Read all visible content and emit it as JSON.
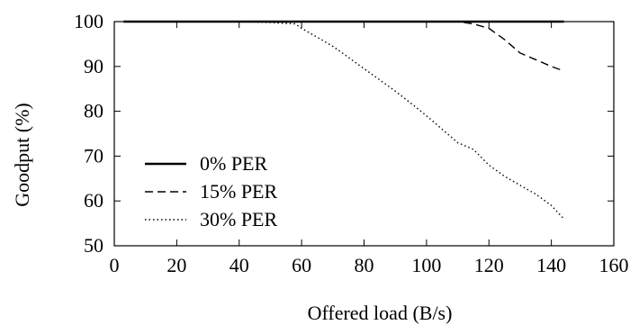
{
  "chart_data": {
    "type": "line",
    "title": "",
    "xlabel": "Offered load (B/s)",
    "ylabel": "Goodput (%)",
    "xlim": [
      0,
      160
    ],
    "ylim": [
      50,
      100
    ],
    "xticks": [
      0,
      20,
      40,
      60,
      80,
      100,
      120,
      140,
      160
    ],
    "yticks": [
      50,
      60,
      70,
      80,
      90,
      100
    ],
    "grid": false,
    "legend_position": "center-left",
    "series": [
      {
        "name": "0% PER",
        "style": "solid",
        "color": "#000000",
        "x": [
          3,
          20,
          40,
          60,
          80,
          100,
          120,
          144
        ],
        "y": [
          100,
          100,
          100,
          100,
          100,
          100,
          100,
          100
        ]
      },
      {
        "name": "15% PER",
        "style": "dashed",
        "color": "#000000",
        "x": [
          3,
          20,
          40,
          60,
          80,
          100,
          110,
          115,
          120,
          125,
          130,
          135,
          140,
          144
        ],
        "y": [
          100,
          100,
          100,
          100,
          100,
          100,
          100,
          99.5,
          98.5,
          96,
          93,
          91.5,
          90,
          89
        ]
      },
      {
        "name": "30% PER",
        "style": "dotted",
        "color": "#000000",
        "x": [
          3,
          20,
          40,
          50,
          58,
          60,
          65,
          70,
          75,
          80,
          85,
          90,
          95,
          100,
          105,
          110,
          115,
          120,
          125,
          130,
          135,
          140,
          144
        ],
        "y": [
          100,
          100,
          100,
          99.8,
          99.5,
          98.5,
          96.5,
          94.5,
          92,
          89.5,
          87,
          84.5,
          81.8,
          79,
          76,
          73,
          71.5,
          68,
          65.5,
          63.5,
          61.5,
          59,
          56
        ]
      }
    ]
  }
}
